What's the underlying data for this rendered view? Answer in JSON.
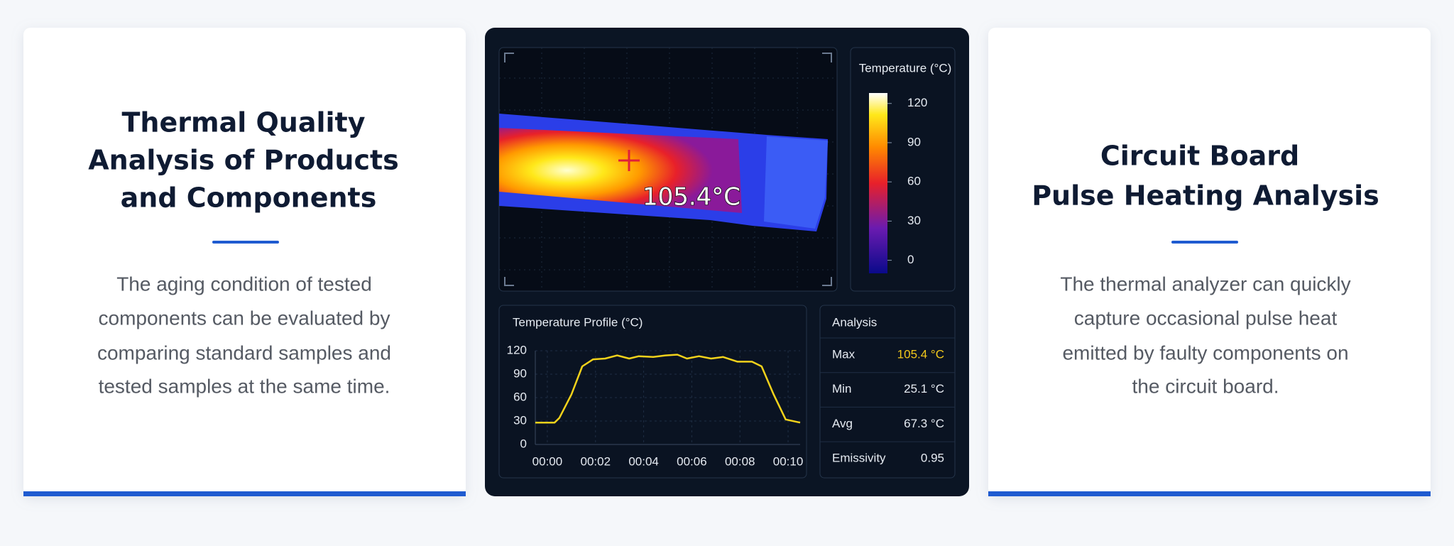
{
  "left_card": {
    "title": [
      "Thermal Quality",
      "Analysis of Products",
      "and Components"
    ],
    "body": [
      "The aging condition of tested",
      "components can be evaluated by",
      "comparing standard samples and",
      "tested samples at the same time."
    ]
  },
  "right_card": {
    "title": [
      "Circuit Board",
      "Pulse Heating Analysis"
    ],
    "body": [
      "The thermal analyzer can quickly",
      "capture occasional pulse heat",
      "emitted by faulty components on",
      "the circuit board."
    ]
  },
  "thermal_view": {
    "readout": "105.4°C",
    "colorbar": {
      "title": "Temperature (°C)",
      "lim": [
        -10,
        128
      ],
      "ticks": [
        0,
        30,
        60,
        90,
        120
      ]
    }
  },
  "chart_data": {
    "type": "line",
    "title": "Temperature Profile (°C)",
    "x": [
      -0.5,
      0.3,
      0.5,
      1.0,
      1.45,
      1.9,
      2.4,
      2.9,
      3.4,
      3.8,
      4.4,
      4.9,
      5.4,
      5.8,
      6.3,
      6.8,
      7.3,
      7.9,
      8.5,
      8.9,
      9.4,
      9.9,
      10.5
    ],
    "values": [
      28,
      28,
      34,
      64,
      100,
      109,
      110,
      114,
      110,
      113,
      112,
      114,
      115,
      110,
      113,
      110,
      112,
      106,
      106,
      100,
      64,
      32,
      28
    ],
    "color": "#f2d21b",
    "xlim": [
      -0.5,
      10.5
    ],
    "ylim": [
      0,
      120
    ],
    "xticks": [
      {
        "value": 0,
        "label": "00:00"
      },
      {
        "value": 2,
        "label": "00:02"
      },
      {
        "value": 4,
        "label": "00:04"
      },
      {
        "value": 6,
        "label": "00:06"
      },
      {
        "value": 8,
        "label": "00:08"
      },
      {
        "value": 10,
        "label": "00:10"
      }
    ],
    "yticks": [
      0,
      30,
      60,
      90,
      120
    ],
    "grid": true
  },
  "analysis": {
    "title": "Analysis",
    "rows": [
      [
        "Max",
        "105.4 °C"
      ],
      [
        "Min",
        "25.1 °C"
      ],
      [
        "Avg",
        "67.3 °C"
      ],
      [
        "Emissivity",
        "0.95"
      ]
    ]
  }
}
